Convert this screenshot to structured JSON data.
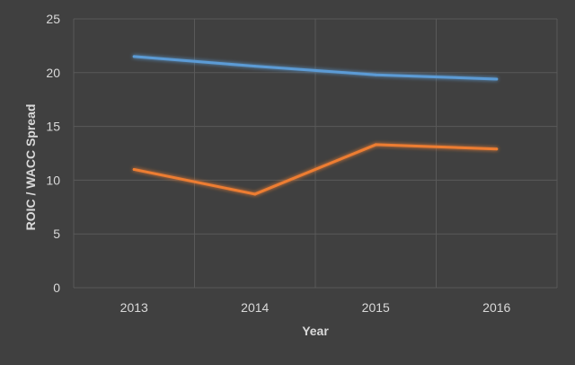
{
  "chart_data": {
    "type": "line",
    "title": "",
    "xlabel": "Year",
    "ylabel": "ROIC / WACC Spread",
    "categories": [
      "2013",
      "2014",
      "2015",
      "2016"
    ],
    "ylim": [
      0,
      25
    ],
    "yticks": [
      0,
      5,
      10,
      15,
      20,
      25
    ],
    "grid": true,
    "series": [
      {
        "values": [
          21.5,
          20.6,
          19.8,
          19.4
        ],
        "color": "#5b9bd5"
      },
      {
        "values": [
          11.0,
          8.7,
          13.3,
          12.9
        ],
        "color": "#ed7d31"
      }
    ]
  },
  "colors": {
    "background": "#404040",
    "grid": "#595959",
    "text": "#d9d9d9"
  }
}
